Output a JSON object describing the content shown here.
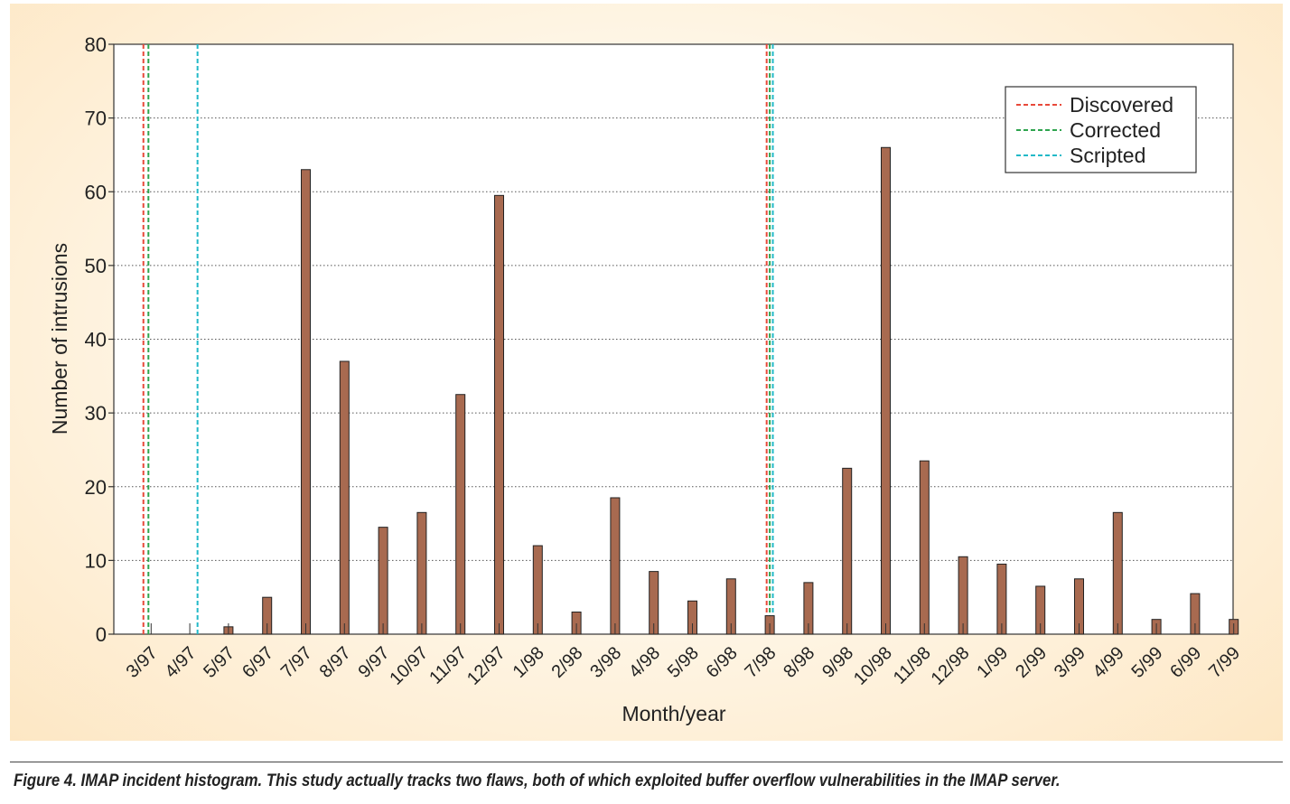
{
  "caption": "Figure 4. IMAP incident histogram. This study actually tracks two flaws, both of which exploited buffer overflow vulnerabilities in the IMAP server.",
  "chart_data": {
    "type": "bar",
    "title": "",
    "xlabel": "Month/year",
    "ylabel": "Number of intrusions",
    "ylim": [
      0,
      80
    ],
    "yticks": [
      0,
      10,
      20,
      30,
      40,
      50,
      60,
      70,
      80
    ],
    "grid": "horizontal dotted",
    "legend_position": "top-right",
    "bar_color": "#a86a50",
    "categories": [
      "3/97",
      "4/97",
      "5/97",
      "6/97",
      "7/97",
      "8/97",
      "9/97",
      "10/97",
      "11/97",
      "12/97",
      "1/98",
      "2/98",
      "3/98",
      "4/98",
      "5/98",
      "6/98",
      "7/98",
      "8/98",
      "9/98",
      "10/98",
      "11/98",
      "12/98",
      "1/99",
      "2/99",
      "3/99",
      "4/99",
      "5/99",
      "6/99",
      "7/99"
    ],
    "values": [
      0,
      0,
      1,
      5,
      63,
      37,
      14.5,
      16.5,
      32.5,
      59.5,
      12,
      3,
      18.5,
      8.5,
      4.5,
      7.5,
      2.5,
      7,
      22.5,
      66,
      23.5,
      10.5,
      9.5,
      6.5,
      7.5,
      16.5,
      2,
      5.5,
      2
    ],
    "markers": [
      {
        "name": "Discovered",
        "color": "#e8493a",
        "x": 0.8
      },
      {
        "name": "Corrected",
        "color": "#2fa54f",
        "x": 0.93
      },
      {
        "name": "Scripted",
        "color": "#22b9c8",
        "x": 2.2
      },
      {
        "name": "Discovered",
        "color": "#e8493a",
        "x": 16.92
      },
      {
        "name": "Corrected",
        "color": "#2fa54f",
        "x": 17.0
      },
      {
        "name": "Scripted",
        "color": "#22b9c8",
        "x": 17.08
      }
    ],
    "legend": [
      {
        "label": "Discovered",
        "color": "#e8493a"
      },
      {
        "label": "Corrected",
        "color": "#2fa54f"
      },
      {
        "label": "Scripted",
        "color": "#22b9c8"
      }
    ]
  }
}
